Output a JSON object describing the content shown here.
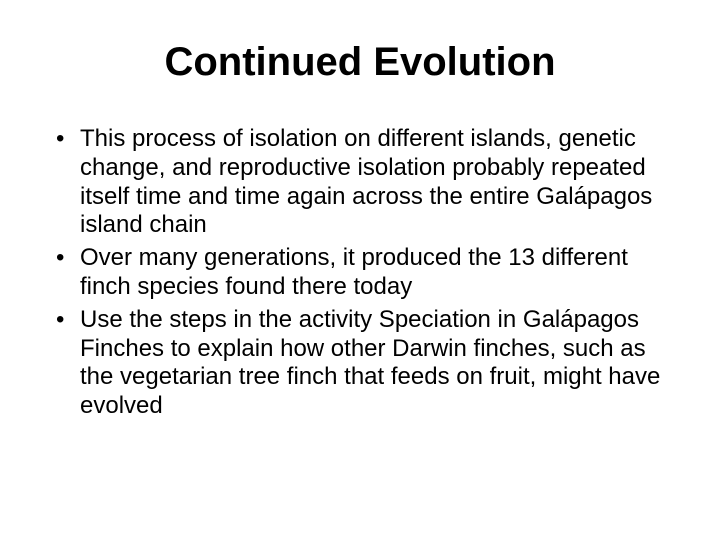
{
  "slide": {
    "title": "Continued Evolution",
    "title_fontsize": 40,
    "title_color": "#000000",
    "background_color": "#ffffff",
    "body_fontsize": 24,
    "body_color": "#000000",
    "bullets": [
      "This process of isolation on different islands, genetic change, and reproductive isolation probably repeated itself time and time again across the entire Galápagos island chain",
      "Over many generations, it produced the 13 different finch species found there today",
      "Use the steps in the activity Speciation in Galápagos Finches to explain how other Darwin finches, such as the vegetarian tree finch that feeds on fruit, might have evolved"
    ]
  }
}
